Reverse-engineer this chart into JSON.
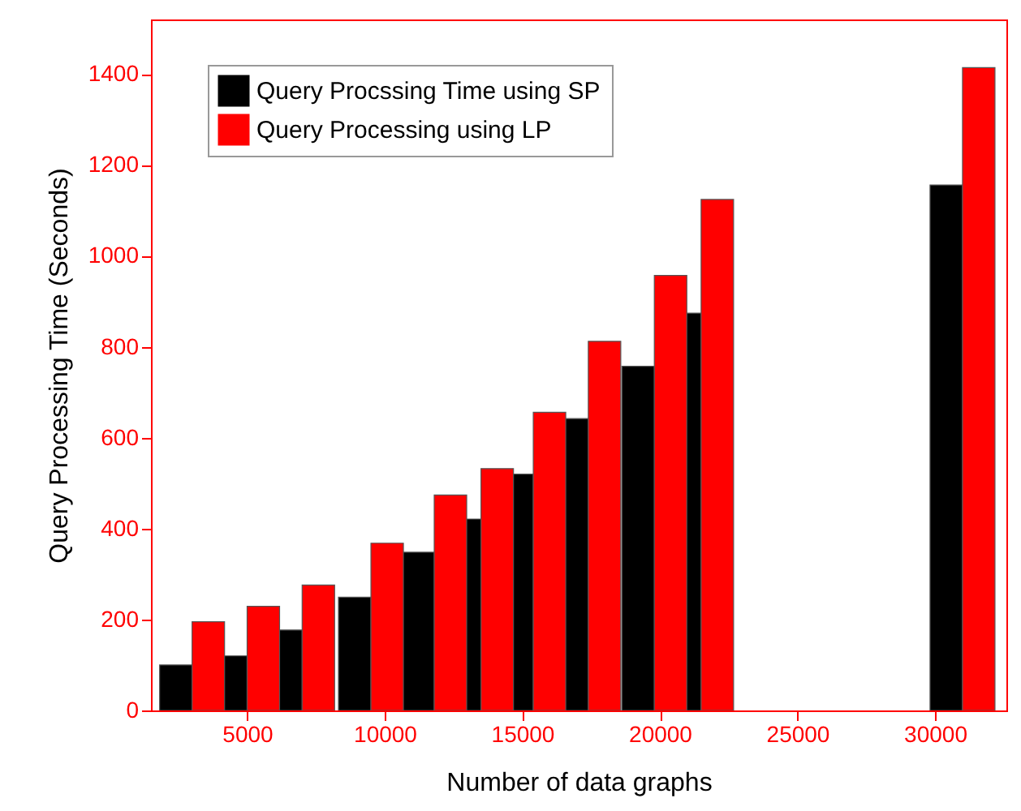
{
  "chart_data": {
    "type": "bar",
    "xlabel": "Number of data graphs",
    "ylabel": "Query Processing Time (Seconds)",
    "x": [
      3000,
      5000,
      7000,
      9500,
      11800,
      13500,
      15400,
      17400,
      19800,
      21500,
      31000
    ],
    "series": [
      {
        "name": "Query Procssing Time using SP",
        "color": "#000000",
        "values": [
          100,
          120,
          177,
          249,
          348,
          421,
          520,
          642,
          757,
          874,
          1156
        ]
      },
      {
        "name": "Query Processing using LP",
        "color": "#ff0000",
        "values": [
          195,
          229,
          276,
          368,
          474,
          532,
          656,
          812,
          957,
          1124,
          1414
        ]
      }
    ],
    "xlim": [
      1800,
      32300
    ],
    "xticks": [
      5000,
      10000,
      15000,
      20000,
      25000,
      30000
    ],
    "ylim": [
      0,
      1520
    ],
    "yticks": [
      0,
      200,
      400,
      600,
      800,
      1000,
      1200,
      1400
    ],
    "grid": false,
    "legend": "top left"
  }
}
